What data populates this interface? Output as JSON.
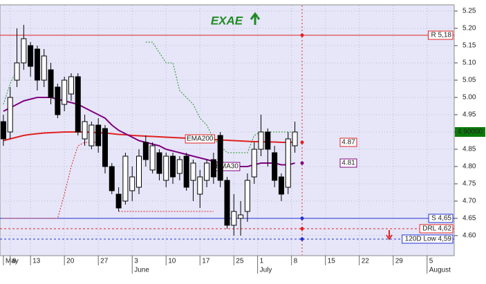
{
  "chart_data": {
    "type": "candlestick",
    "title": "EXAE",
    "open": [
      4.93,
      4.9,
      5.05,
      5.1,
      5.15,
      5.14,
      5.05,
      5.08,
      5.03,
      4.98,
      5.01,
      5.06,
      4.88,
      4.86,
      4.92,
      4.91,
      4.8,
      4.72,
      4.7,
      4.73,
      4.74,
      4.87,
      4.79,
      4.84,
      4.76,
      4.83,
      4.78,
      4.83,
      4.76,
      4.72,
      4.76,
      4.82,
      4.89,
      4.76,
      4.63,
      4.65,
      4.67,
      4.77,
      4.85,
      4.9,
      4.84,
      4.77,
      4.74,
      4.86
    ],
    "high": [
      4.95,
      5.03,
      5.2,
      5.21,
      5.16,
      5.15,
      5.14,
      5.1,
      5.04,
      5.06,
      5.07,
      5.07,
      4.95,
      4.93,
      4.94,
      4.92,
      4.81,
      4.74,
      4.84,
      4.8,
      4.85,
      4.89,
      4.87,
      4.85,
      4.84,
      4.84,
      4.83,
      4.84,
      4.82,
      4.79,
      4.82,
      4.84,
      4.9,
      4.77,
      4.72,
      4.7,
      4.78,
      4.87,
      4.95,
      4.91,
      4.86,
      4.78,
      4.9,
      4.93
    ],
    "low": [
      4.86,
      4.88,
      5.03,
      5.08,
      5.06,
      5.02,
      5.03,
      4.98,
      4.94,
      4.96,
      4.99,
      4.89,
      4.86,
      4.85,
      4.84,
      4.78,
      4.72,
      4.67,
      4.69,
      4.7,
      4.72,
      4.8,
      4.78,
      4.76,
      4.74,
      4.75,
      4.76,
      4.73,
      4.7,
      4.68,
      4.74,
      4.75,
      4.74,
      4.62,
      4.6,
      4.6,
      4.64,
      4.75,
      4.83,
      4.8,
      4.74,
      4.7,
      4.72,
      4.84
    ],
    "close": [
      4.88,
      5.0,
      5.1,
      5.17,
      5.09,
      5.05,
      5.12,
      5.0,
      4.95,
      5.05,
      5.06,
      4.9,
      4.93,
      4.92,
      4.86,
      4.8,
      4.73,
      4.68,
      4.83,
      4.77,
      4.83,
      4.82,
      4.86,
      4.78,
      4.83,
      4.77,
      4.82,
      4.74,
      4.81,
      4.77,
      4.81,
      4.77,
      4.76,
      4.63,
      4.67,
      4.66,
      4.76,
      4.85,
      4.9,
      4.85,
      4.76,
      4.72,
      4.88,
      4.9
    ],
    "ylim": [
      4.542,
      5.266
    ],
    "yticks": [
      {
        "value": 4.6,
        "label": "4.60"
      },
      {
        "value": 4.65,
        "label": "4.65"
      },
      {
        "value": 4.7,
        "label": "4.70"
      },
      {
        "value": 4.75,
        "label": "4.75"
      },
      {
        "value": 4.8,
        "label": "4.80"
      },
      {
        "value": 4.85,
        "label": "4.85"
      },
      {
        "value": 4.9,
        "label": "4.90"
      },
      {
        "value": 4.95,
        "label": "4.95"
      },
      {
        "value": 5.0,
        "label": "5.00"
      },
      {
        "value": 5.05,
        "label": "5.05"
      },
      {
        "value": 5.1,
        "label": "5.10"
      },
      {
        "value": 5.15,
        "label": "5.15"
      },
      {
        "value": 5.2,
        "label": "5.20"
      },
      {
        "value": 5.25,
        "label": "5.25"
      }
    ],
    "xlim": [
      -0.5,
      66.5
    ],
    "xticks": [
      {
        "value": 0,
        "label": "May"
      },
      {
        "value": 1,
        "label": "8"
      },
      {
        "value": 4,
        "label": "13"
      },
      {
        "value": 9,
        "label": "20"
      },
      {
        "value": 14,
        "label": "27"
      },
      {
        "value": 19,
        "label": "3"
      },
      {
        "value": 24,
        "label": "10"
      },
      {
        "value": 29,
        "label": "17"
      },
      {
        "value": 34,
        "label": "25"
      },
      {
        "value": 37.5,
        "label": "1"
      },
      {
        "value": 42.5,
        "label": "8"
      },
      {
        "value": 47.5,
        "label": "15"
      },
      {
        "value": 52.5,
        "label": "22"
      },
      {
        "value": 57.5,
        "label": "29"
      },
      {
        "value": 62.5,
        "label": "5"
      }
    ],
    "month_ticks": [
      {
        "value": 19,
        "label": "June"
      },
      {
        "value": 37.5,
        "label": "July"
      },
      {
        "value": 62.5,
        "label": "August"
      }
    ],
    "grid": true,
    "overlays": [
      {
        "name": "EMA200",
        "color": "#e02020",
        "style": "solid",
        "last_value": 4.87,
        "values": [
          4.875,
          4.88,
          4.885,
          4.89,
          4.893,
          4.895,
          4.897,
          4.898,
          4.899,
          4.9,
          4.9,
          4.9,
          4.9,
          4.899,
          4.898,
          4.897,
          4.895,
          4.893,
          4.892,
          4.89,
          4.889,
          4.888,
          4.887,
          4.886,
          4.885,
          4.884,
          4.883,
          4.882,
          4.881,
          4.88,
          4.879,
          4.878,
          4.877,
          4.876,
          4.875,
          4.874,
          4.873,
          4.872,
          4.872,
          4.871,
          4.871,
          4.87,
          4.87,
          4.87
        ]
      },
      {
        "name": "EMA30",
        "color": "#800080",
        "style": "solid",
        "last_value": 4.81,
        "values": [
          4.96,
          4.97,
          4.98,
          4.99,
          4.995,
          5.0,
          5.0,
          5.0,
          4.995,
          4.99,
          4.985,
          4.98,
          4.97,
          4.96,
          4.95,
          4.94,
          4.92,
          4.905,
          4.895,
          4.885,
          4.875,
          4.87,
          4.865,
          4.86,
          4.85,
          4.845,
          4.84,
          4.835,
          4.83,
          4.825,
          4.82,
          4.815,
          4.81,
          4.8,
          4.8,
          4.8,
          4.8,
          4.805,
          4.81,
          4.81,
          4.81,
          4.805,
          4.805,
          4.81
        ]
      },
      {
        "color": "#209020",
        "style": "dotted",
        "values": [
          4.98,
          5.04,
          5.08,
          null,
          null,
          null,
          null,
          null,
          null,
          null,
          null,
          null,
          null,
          null,
          null,
          null,
          null,
          null,
          null,
          null,
          null,
          5.16,
          5.16,
          5.13,
          5.1,
          5.1,
          5.02,
          5.0,
          4.98,
          4.94,
          4.92,
          4.88,
          4.86,
          4.84,
          4.84,
          4.84,
          4.84,
          4.89,
          4.9,
          4.9,
          4.9,
          4.9,
          4.9,
          4.9
        ]
      },
      {
        "color": "#e02020",
        "style": "dotted",
        "values": [
          4.65,
          4.65,
          4.65,
          4.65,
          4.65,
          4.65,
          4.65,
          4.65,
          4.65,
          4.72,
          4.8,
          4.86,
          4.87,
          4.87,
          4.87,
          null,
          null,
          4.67,
          4.67,
          4.67,
          4.67,
          4.67,
          4.67,
          4.67,
          4.67,
          4.67,
          4.67,
          4.67,
          4.67,
          4.67,
          4.67,
          4.67,
          null,
          null,
          null,
          null,
          null,
          null,
          null,
          null,
          null,
          null,
          null,
          null
        ]
      }
    ],
    "levels": [
      {
        "label": "R 5,18",
        "value": 5.18,
        "color": "#e02020",
        "style": "solid"
      },
      {
        "label": "S 4,65",
        "value": 4.65,
        "color": "#2030d0",
        "style": "solid"
      },
      {
        "label": "DRL 4,62",
        "value": 4.62,
        "color": "#e02020",
        "style": "dashed"
      },
      {
        "label": "120D Low 4,59",
        "value": 4.59,
        "color": "#2030d0",
        "style": "dashed"
      }
    ],
    "last_price": {
      "value": 4.9,
      "label": "4.90000"
    }
  }
}
